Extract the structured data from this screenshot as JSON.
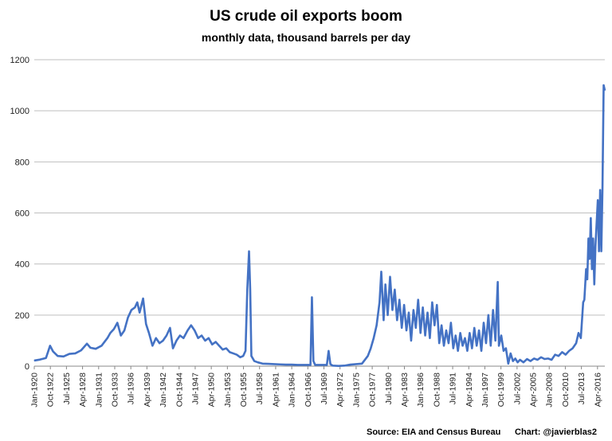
{
  "chart_data": {
    "type": "line",
    "title": "US crude oil exports boom",
    "subtitle": "monthly data, thousand barrels per day",
    "xlabel": "",
    "ylabel": "",
    "ylim": [
      0,
      1200
    ],
    "yticks": [
      0,
      200,
      400,
      600,
      800,
      1000,
      1200
    ],
    "grid": "horizontal",
    "x_start": "Jan-1920",
    "x_end": "Jul-2017",
    "xtick_labels": [
      "Jan-1920",
      "Oct-1922",
      "Jul-1925",
      "Apr-1928",
      "Jan-1931",
      "Oct-1933",
      "Jul-1936",
      "Apr-1939",
      "Jan-1942",
      "Oct-1944",
      "Jul-1947",
      "Apr-1950",
      "Jan-1953",
      "Oct-1955",
      "Jul-1958",
      "Apr-1961",
      "Jan-1964",
      "Oct-1966",
      "Jul-1969",
      "Apr-1972",
      "Jan-1975",
      "Oct-1977",
      "Jul-1980",
      "Apr-1983",
      "Jan-1986",
      "Oct-1988",
      "Jul-1991",
      "Apr-1994",
      "Jan-1997",
      "Oct-1999",
      "Jul-2002",
      "Apr-2005",
      "Jan-2008",
      "Oct-2010",
      "Jul-2013",
      "Apr-2016"
    ],
    "series": [
      {
        "name": "US crude oil exports",
        "color": "#4472C4",
        "points": [
          {
            "date": "1920.0",
            "t": 1920.0,
            "v": 22
          },
          {
            "t": 1921.0,
            "v": 26
          },
          {
            "t": 1922.0,
            "v": 32
          },
          {
            "t": 1922.7,
            "v": 80
          },
          {
            "t": 1923.2,
            "v": 58
          },
          {
            "t": 1924.0,
            "v": 40
          },
          {
            "t": 1925.0,
            "v": 38
          },
          {
            "t": 1926.0,
            "v": 48
          },
          {
            "t": 1927.0,
            "v": 50
          },
          {
            "t": 1928.0,
            "v": 62
          },
          {
            "t": 1929.0,
            "v": 88
          },
          {
            "t": 1929.6,
            "v": 72
          },
          {
            "t": 1930.5,
            "v": 68
          },
          {
            "t": 1931.5,
            "v": 80
          },
          {
            "t": 1932.5,
            "v": 110
          },
          {
            "t": 1933.0,
            "v": 130
          },
          {
            "t": 1933.6,
            "v": 145
          },
          {
            "t": 1934.2,
            "v": 170
          },
          {
            "t": 1934.8,
            "v": 120
          },
          {
            "t": 1935.4,
            "v": 140
          },
          {
            "t": 1936.0,
            "v": 190
          },
          {
            "t": 1936.6,
            "v": 220
          },
          {
            "t": 1937.2,
            "v": 230
          },
          {
            "t": 1937.6,
            "v": 250
          },
          {
            "t": 1938.0,
            "v": 210
          },
          {
            "t": 1938.6,
            "v": 265
          },
          {
            "t": 1939.1,
            "v": 165
          },
          {
            "t": 1939.6,
            "v": 130
          },
          {
            "t": 1940.2,
            "v": 80
          },
          {
            "t": 1940.8,
            "v": 110
          },
          {
            "t": 1941.4,
            "v": 90
          },
          {
            "t": 1942.0,
            "v": 100
          },
          {
            "t": 1942.6,
            "v": 120
          },
          {
            "t": 1943.2,
            "v": 150
          },
          {
            "t": 1943.7,
            "v": 70
          },
          {
            "t": 1944.3,
            "v": 100
          },
          {
            "t": 1944.9,
            "v": 120
          },
          {
            "t": 1945.5,
            "v": 110
          },
          {
            "t": 1946.2,
            "v": 140
          },
          {
            "t": 1946.8,
            "v": 160
          },
          {
            "t": 1947.4,
            "v": 140
          },
          {
            "t": 1948.0,
            "v": 110
          },
          {
            "t": 1948.6,
            "v": 120
          },
          {
            "t": 1949.2,
            "v": 100
          },
          {
            "t": 1949.8,
            "v": 110
          },
          {
            "t": 1950.4,
            "v": 85
          },
          {
            "t": 1951.0,
            "v": 95
          },
          {
            "t": 1951.6,
            "v": 80
          },
          {
            "t": 1952.2,
            "v": 65
          },
          {
            "t": 1952.8,
            "v": 70
          },
          {
            "t": 1953.4,
            "v": 55
          },
          {
            "t": 1954.0,
            "v": 50
          },
          {
            "t": 1954.6,
            "v": 45
          },
          {
            "t": 1955.2,
            "v": 35
          },
          {
            "t": 1955.7,
            "v": 40
          },
          {
            "t": 1956.1,
            "v": 60
          },
          {
            "t": 1956.4,
            "v": 300
          },
          {
            "t": 1956.7,
            "v": 450
          },
          {
            "t": 1956.9,
            "v": 300
          },
          {
            "t": 1957.1,
            "v": 40
          },
          {
            "t": 1957.6,
            "v": 20
          },
          {
            "t": 1958.2,
            "v": 15
          },
          {
            "t": 1959.0,
            "v": 10
          },
          {
            "t": 1960.0,
            "v": 9
          },
          {
            "t": 1961.0,
            "v": 8
          },
          {
            "t": 1962.0,
            "v": 7
          },
          {
            "t": 1963.0,
            "v": 6
          },
          {
            "t": 1964.0,
            "v": 6
          },
          {
            "t": 1965.0,
            "v": 5
          },
          {
            "t": 1966.0,
            "v": 5
          },
          {
            "t": 1967.2,
            "v": 5
          },
          {
            "t": 1967.45,
            "v": 270
          },
          {
            "t": 1967.7,
            "v": 20
          },
          {
            "t": 1968.0,
            "v": 5
          },
          {
            "t": 1969.0,
            "v": 5
          },
          {
            "t": 1970.0,
            "v": 5
          },
          {
            "t": 1970.3,
            "v": 60
          },
          {
            "t": 1970.6,
            "v": 8
          },
          {
            "t": 1971.0,
            "v": 2
          },
          {
            "t": 1972.0,
            "v": 1
          },
          {
            "t": 1973.0,
            "v": 2
          },
          {
            "t": 1974.0,
            "v": 6
          },
          {
            "t": 1975.0,
            "v": 8
          },
          {
            "t": 1976.0,
            "v": 10
          },
          {
            "t": 1977.0,
            "v": 40
          },
          {
            "t": 1977.5,
            "v": 70
          },
          {
            "t": 1978.0,
            "v": 110
          },
          {
            "t": 1978.5,
            "v": 160
          },
          {
            "t": 1979.0,
            "v": 250
          },
          {
            "t": 1979.3,
            "v": 370
          },
          {
            "t": 1979.7,
            "v": 180
          },
          {
            "t": 1980.0,
            "v": 320
          },
          {
            "t": 1980.4,
            "v": 200
          },
          {
            "t": 1980.8,
            "v": 350
          },
          {
            "t": 1981.2,
            "v": 220
          },
          {
            "t": 1981.6,
            "v": 300
          },
          {
            "t": 1982.0,
            "v": 180
          },
          {
            "t": 1982.4,
            "v": 260
          },
          {
            "t": 1982.8,
            "v": 150
          },
          {
            "t": 1983.2,
            "v": 240
          },
          {
            "t": 1983.6,
            "v": 140
          },
          {
            "t": 1984.0,
            "v": 210
          },
          {
            "t": 1984.4,
            "v": 100
          },
          {
            "t": 1984.8,
            "v": 220
          },
          {
            "t": 1985.2,
            "v": 150
          },
          {
            "t": 1985.6,
            "v": 260
          },
          {
            "t": 1986.0,
            "v": 130
          },
          {
            "t": 1986.4,
            "v": 230
          },
          {
            "t": 1986.8,
            "v": 120
          },
          {
            "t": 1987.2,
            "v": 210
          },
          {
            "t": 1987.6,
            "v": 110
          },
          {
            "t": 1988.0,
            "v": 250
          },
          {
            "t": 1988.4,
            "v": 160
          },
          {
            "t": 1988.8,
            "v": 240
          },
          {
            "t": 1989.2,
            "v": 90
          },
          {
            "t": 1989.6,
            "v": 160
          },
          {
            "t": 1990.0,
            "v": 80
          },
          {
            "t": 1990.4,
            "v": 140
          },
          {
            "t": 1990.8,
            "v": 90
          },
          {
            "t": 1991.2,
            "v": 170
          },
          {
            "t": 1991.6,
            "v": 70
          },
          {
            "t": 1992.0,
            "v": 120
          },
          {
            "t": 1992.4,
            "v": 60
          },
          {
            "t": 1992.8,
            "v": 130
          },
          {
            "t": 1993.2,
            "v": 80
          },
          {
            "t": 1993.6,
            "v": 110
          },
          {
            "t": 1994.0,
            "v": 60
          },
          {
            "t": 1994.4,
            "v": 130
          },
          {
            "t": 1994.8,
            "v": 70
          },
          {
            "t": 1995.2,
            "v": 150
          },
          {
            "t": 1995.6,
            "v": 80
          },
          {
            "t": 1996.0,
            "v": 140
          },
          {
            "t": 1996.4,
            "v": 60
          },
          {
            "t": 1996.8,
            "v": 170
          },
          {
            "t": 1997.2,
            "v": 90
          },
          {
            "t": 1997.6,
            "v": 200
          },
          {
            "t": 1998.0,
            "v": 80
          },
          {
            "t": 1998.4,
            "v": 220
          },
          {
            "t": 1998.8,
            "v": 100
          },
          {
            "t": 1999.2,
            "v": 330
          },
          {
            "t": 1999.4,
            "v": 80
          },
          {
            "t": 1999.8,
            "v": 120
          },
          {
            "t": 2000.2,
            "v": 60
          },
          {
            "t": 2000.6,
            "v": 70
          },
          {
            "t": 2001.0,
            "v": 10
          },
          {
            "t": 2001.4,
            "v": 50
          },
          {
            "t": 2001.8,
            "v": 20
          },
          {
            "t": 2002.2,
            "v": 30
          },
          {
            "t": 2002.6,
            "v": 15
          },
          {
            "t": 2003.0,
            "v": 25
          },
          {
            "t": 2003.6,
            "v": 15
          },
          {
            "t": 2004.2,
            "v": 28
          },
          {
            "t": 2004.8,
            "v": 20
          },
          {
            "t": 2005.4,
            "v": 30
          },
          {
            "t": 2006.0,
            "v": 25
          },
          {
            "t": 2006.6,
            "v": 35
          },
          {
            "t": 2007.2,
            "v": 28
          },
          {
            "t": 2007.8,
            "v": 30
          },
          {
            "t": 2008.4,
            "v": 25
          },
          {
            "t": 2009.0,
            "v": 45
          },
          {
            "t": 2009.6,
            "v": 40
          },
          {
            "t": 2010.2,
            "v": 55
          },
          {
            "t": 2010.8,
            "v": 45
          },
          {
            "t": 2011.4,
            "v": 60
          },
          {
            "t": 2012.0,
            "v": 70
          },
          {
            "t": 2012.6,
            "v": 90
          },
          {
            "t": 2013.0,
            "v": 130
          },
          {
            "t": 2013.4,
            "v": 110
          },
          {
            "t": 2013.8,
            "v": 250
          },
          {
            "t": 2014.0,
            "v": 260
          },
          {
            "t": 2014.3,
            "v": 380
          },
          {
            "t": 2014.5,
            "v": 340
          },
          {
            "t": 2014.7,
            "v": 500
          },
          {
            "t": 2014.9,
            "v": 420
          },
          {
            "t": 2015.1,
            "v": 580
          },
          {
            "t": 2015.3,
            "v": 380
          },
          {
            "t": 2015.5,
            "v": 500
          },
          {
            "t": 2015.7,
            "v": 320
          },
          {
            "t": 2015.9,
            "v": 470
          },
          {
            "t": 2016.1,
            "v": 560
          },
          {
            "t": 2016.3,
            "v": 650
          },
          {
            "t": 2016.5,
            "v": 450
          },
          {
            "t": 2016.7,
            "v": 690
          },
          {
            "t": 2016.9,
            "v": 450
          },
          {
            "t": 2017.1,
            "v": 700
          },
          {
            "t": 2017.3,
            "v": 1100
          },
          {
            "t": 2017.5,
            "v": 1080
          }
        ]
      }
    ]
  },
  "footer": {
    "source": "Source: EIA and Census Bureau",
    "credit": "Chart: @javierblas2"
  }
}
